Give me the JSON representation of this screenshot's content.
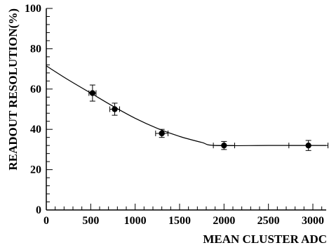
{
  "chart_data": {
    "type": "scatter",
    "title": "",
    "xlabel": "MEAN CLUSTER ADC",
    "ylabel": "READOUT RESOLUTION(%)",
    "xlim": [
      0,
      3150
    ],
    "ylim": [
      0,
      100
    ],
    "x_ticks": [
      0,
      500,
      1000,
      1500,
      2000,
      2500,
      3000
    ],
    "y_ticks": [
      0,
      20,
      40,
      60,
      80,
      100
    ],
    "grid": false,
    "legend": "none",
    "points": [
      {
        "x": 520,
        "y": 58,
        "xerr": 40,
        "yerr": 4
      },
      {
        "x": 770,
        "y": 50,
        "xerr": 55,
        "yerr": 3
      },
      {
        "x": 1300,
        "y": 38,
        "xerr": 70,
        "yerr": 2
      },
      {
        "x": 2000,
        "y": 32,
        "xerr": 120,
        "yerr": 2
      },
      {
        "x": 2950,
        "y": 32,
        "xerr": 220,
        "yerr": 2.5
      }
    ],
    "fit_curve": [
      {
        "x": 0,
        "y": 71.5
      },
      {
        "x": 250,
        "y": 64.5
      },
      {
        "x": 500,
        "y": 58
      },
      {
        "x": 750,
        "y": 51.5
      },
      {
        "x": 1000,
        "y": 45.5
      },
      {
        "x": 1250,
        "y": 40.5
      },
      {
        "x": 1500,
        "y": 36.5
      },
      {
        "x": 1750,
        "y": 33.5
      },
      {
        "x": 1900,
        "y": 32
      },
      {
        "x": 2500,
        "y": 32
      },
      {
        "x": 3150,
        "y": 32
      }
    ],
    "colors": {
      "axis": "#000000",
      "marker": "#000000",
      "curve": "#000000"
    }
  }
}
